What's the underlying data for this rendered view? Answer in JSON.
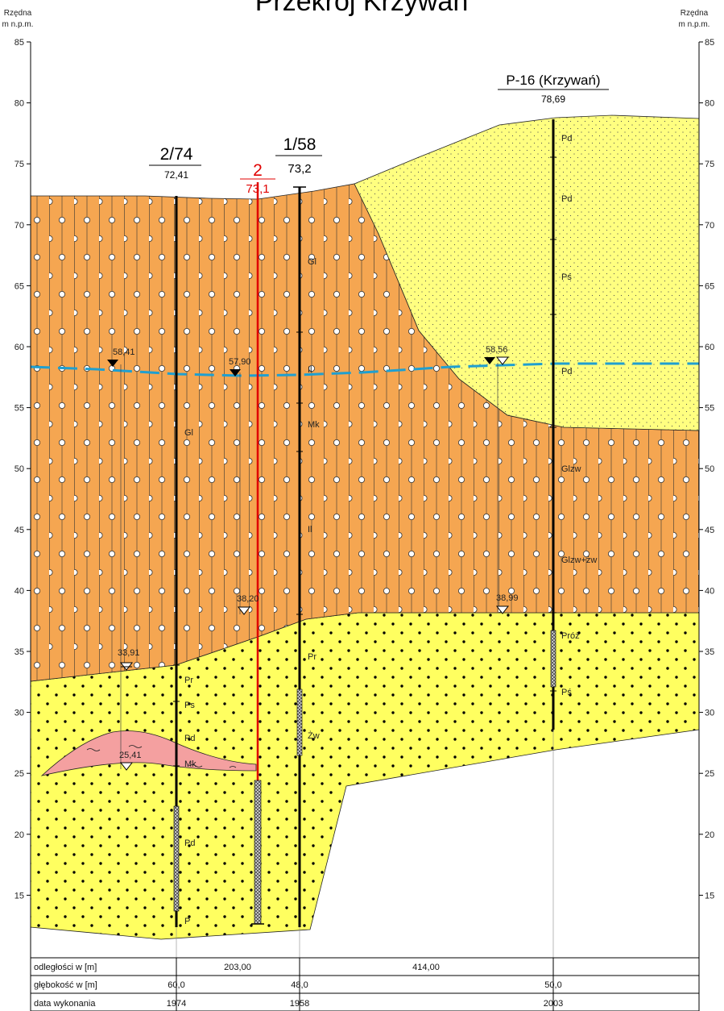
{
  "title": "Przekrój Krzywań",
  "axis": {
    "left_label": [
      "Rzędna",
      "m n.p.m."
    ],
    "right_label": [
      "Rzędna",
      "m n.p.m."
    ],
    "ticks": [
      "85",
      "80",
      "75",
      "70",
      "65",
      "60",
      "55",
      "50",
      "45",
      "40",
      "35",
      "30",
      "25",
      "20",
      "15"
    ]
  },
  "boreholes": [
    {
      "name": "2/74",
      "elevation": "72,41",
      "color": "#000000"
    },
    {
      "name": "2",
      "elevation": "73,1",
      "color": "#e00000"
    },
    {
      "name": "1/58",
      "elevation": "73,2",
      "color": "#000000"
    },
    {
      "name": "P-16 (Krzywań)",
      "elevation": "78,69",
      "color": "#000000"
    }
  ],
  "water_levels": [
    "58,41",
    "57,90",
    "58,56",
    "33,91",
    "25,41",
    "38,20",
    "38,99"
  ],
  "soil_labels": {
    "b274": [
      "Gl",
      "Pr",
      "Ps",
      "Pd",
      "Mk",
      "Pd",
      "P"
    ],
    "b158": [
      "Gl",
      "Il",
      "Mk",
      "Il",
      "Pr",
      "Żw"
    ],
    "p16": [
      "Pd",
      "Pd",
      "Pś",
      "Pd",
      "Glzw",
      "Glzw+żw",
      "Próż",
      "Pś"
    ]
  },
  "table": {
    "row_labels": [
      "odległości w [m]",
      "głębokość w [m]",
      "data wykonania"
    ],
    "distances": [
      "203,00",
      "414,00"
    ],
    "depths": [
      "60,0",
      "48,0",
      "50,0"
    ],
    "dates": [
      "1974",
      "1958",
      "2003"
    ]
  },
  "colors": {
    "clay": "#f5a651",
    "sand_light": "#ffff80",
    "sand": "#ffff60",
    "lens": "#f4a0a0",
    "water_table": "#1f9fd0",
    "borehole_red": "#e00000"
  }
}
